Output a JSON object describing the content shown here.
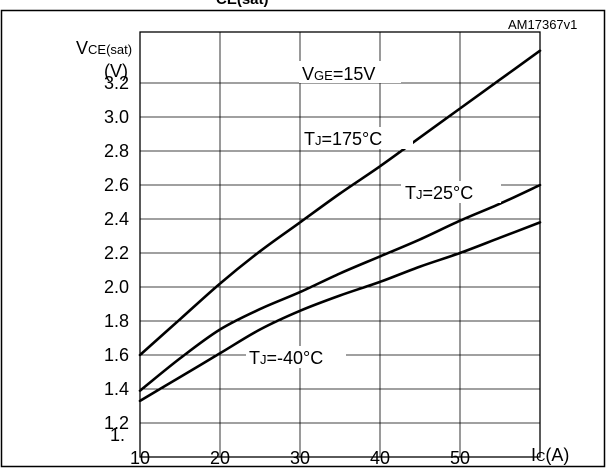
{
  "figure": {
    "code": "AM17367v1",
    "top_fragment": "CE(sat)"
  },
  "chart_data": {
    "type": "line",
    "xlabel": {
      "main": "I",
      "sub": "C",
      "unit": "(A)"
    },
    "ylabel": {
      "main": "V",
      "sub": "CE(sat)",
      "unit": "(V)"
    },
    "xlim": [
      10,
      60
    ],
    "ylim": [
      1.0,
      3.5
    ],
    "x_ticks": [
      10,
      20,
      30,
      40,
      50
    ],
    "x_tick_labels": [
      "10",
      "20",
      "30",
      "40",
      "50"
    ],
    "y_ticks": [
      1.2,
      1.4,
      1.6,
      1.8,
      2.0,
      2.2,
      2.4,
      2.6,
      2.8,
      3.0,
      3.2
    ],
    "y_tick_labels": [
      "1.2",
      "1.4",
      "1.6",
      "1.8",
      "2.0",
      "2.2",
      "2.4",
      "2.6",
      "2.8",
      "3.0",
      "3.2"
    ],
    "y_bottom_label": "1.",
    "grid": true,
    "condition": {
      "main": "V",
      "sub": "GE",
      "rest": "=15V"
    },
    "series": [
      {
        "name": "TJ=175°C",
        "label": {
          "main": "T",
          "sub": "J",
          "rest": "=175°C"
        },
        "x": [
          10,
          15,
          20,
          25,
          30,
          35,
          40,
          45,
          50,
          55,
          60
        ],
        "y": [
          1.6,
          1.81,
          2.02,
          2.21,
          2.38,
          2.55,
          2.71,
          2.88,
          3.05,
          3.22,
          3.39
        ]
      },
      {
        "name": "TJ=25°C",
        "label": {
          "main": "T",
          "sub": "J",
          "rest": "=25°C"
        },
        "x": [
          10,
          15,
          20,
          25,
          30,
          35,
          40,
          45,
          50,
          55,
          60
        ],
        "y": [
          1.39,
          1.58,
          1.75,
          1.87,
          1.97,
          2.08,
          2.18,
          2.28,
          2.39,
          2.49,
          2.6
        ]
      },
      {
        "name": "TJ=-40°C",
        "label": {
          "main": "T",
          "sub": "J",
          "rest": "=-40°C"
        },
        "x": [
          10,
          15,
          20,
          25,
          30,
          35,
          40,
          45,
          50,
          55,
          60
        ],
        "y": [
          1.33,
          1.47,
          1.61,
          1.75,
          1.86,
          1.95,
          2.03,
          2.12,
          2.2,
          2.29,
          2.38
        ]
      }
    ]
  }
}
